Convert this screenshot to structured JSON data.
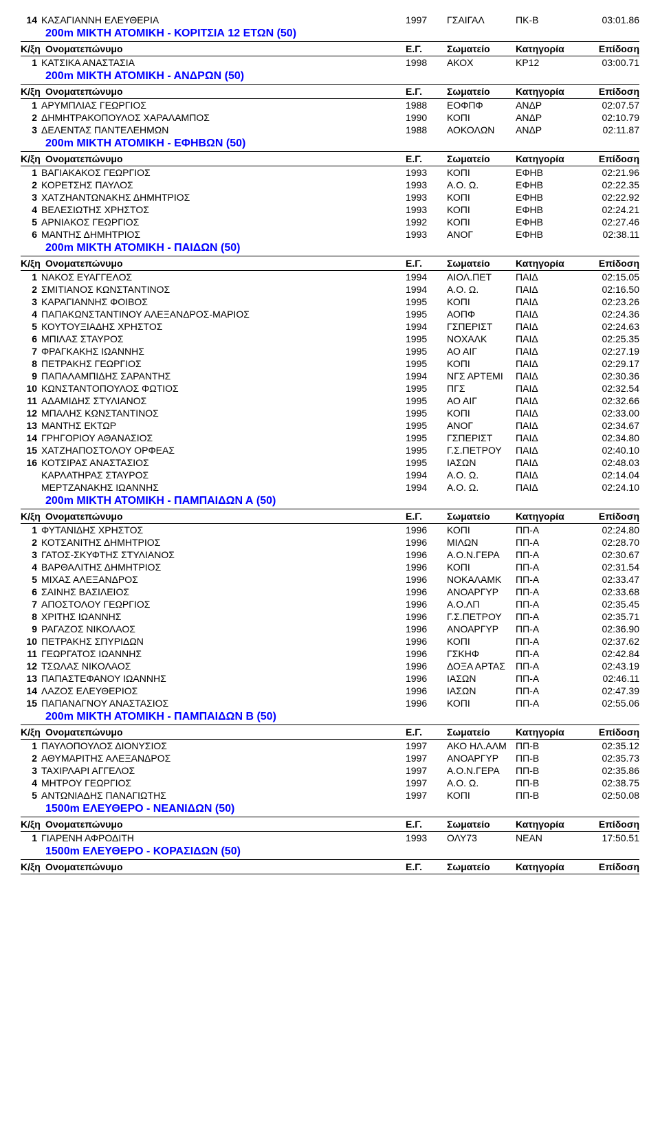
{
  "header_labels": {
    "rank": "Κ/ξη",
    "name": "Ονοματεπώνυμο",
    "year": "Ε.Γ.",
    "club": "Σωματείο",
    "category": "Κατηγορία",
    "performance": "Επίδοση"
  },
  "top_row": {
    "rank": "14",
    "name": "ΚΑΣΑΓΙΑΝΝΗ ΕΛΕΥΘΕΡΙΑ",
    "year": "1997",
    "club": "ΓΣΑΙΓΑΛ",
    "cat": "ΠΚ-Β",
    "perf": "03:01.86"
  },
  "sections": [
    {
      "title": "200m ΜΙΚΤΗ ΑΤΟΜΙΚΗ - ΚΟΡΙΤΣΙΑ 12 ΕΤΩΝ (50)",
      "rows": [
        {
          "rank": "1",
          "name": "ΚΑΤΣΙΚΑ ΑΝΑΣΤΑΣΙΑ",
          "year": "1998",
          "club": "ΑΚΟΧ",
          "cat": "ΚΡ12",
          "perf": "03:00.71"
        }
      ]
    },
    {
      "title": "200m ΜΙΚΤΗ ΑΤΟΜΙΚΗ - ΑΝΔΡΩΝ (50)",
      "rows": [
        {
          "rank": "1",
          "name": "ΑΡΥΜΠΛΙΑΣ ΓΕΩΡΓΙΟΣ",
          "year": "1988",
          "club": "ΕΟΦΠΦ",
          "cat": "ΑΝΔΡ",
          "perf": "02:07.57"
        },
        {
          "rank": "2",
          "name": "ΔΗΜΗΤΡΑΚΟΠΟΥΛΟΣ ΧΑΡΑΛΑΜΠΟΣ",
          "year": "1990",
          "club": "ΚΟΠΙ",
          "cat": "ΑΝΔΡ",
          "perf": "02:10.79"
        },
        {
          "rank": "3",
          "name": "ΔΕΛΕΝΤΑΣ ΠΑΝΤΕΛΕΗΜΩΝ",
          "year": "1988",
          "club": "ΑΟΚΟΛΩΝ",
          "cat": "ΑΝΔΡ",
          "perf": "02:11.87"
        }
      ]
    },
    {
      "title": "200m ΜΙΚΤΗ ΑΤΟΜΙΚΗ - ΕΦΗΒΩΝ (50)",
      "rows": [
        {
          "rank": "1",
          "name": "ΒΑΓΙΑΚΑΚΟΣ ΓΕΩΡΓΙΟΣ",
          "year": "1993",
          "club": "ΚΟΠΙ",
          "cat": "ΕΦΗΒ",
          "perf": "02:21.96"
        },
        {
          "rank": "2",
          "name": "ΚΟΡΕΤΣΗΣ ΠΑΥΛΟΣ",
          "year": "1993",
          "club": "Α.Ο. Ω.",
          "cat": "ΕΦΗΒ",
          "perf": "02:22.35"
        },
        {
          "rank": "3",
          "name": "ΧΑΤΖΗΑΝΤΩΝΑΚΗΣ ΔΗΜΗΤΡΙΟΣ",
          "year": "1993",
          "club": "ΚΟΠΙ",
          "cat": "ΕΦΗΒ",
          "perf": "02:22.92"
        },
        {
          "rank": "4",
          "name": "ΒΕΛΕΣΙΩΤΗΣ ΧΡΗΣΤΟΣ",
          "year": "1993",
          "club": "ΚΟΠΙ",
          "cat": "ΕΦΗΒ",
          "perf": "02:24.21"
        },
        {
          "rank": "5",
          "name": "ΑΡΝΙΑΚΟΣ ΓΕΩΡΓΙΟΣ",
          "year": "1992",
          "club": "ΚΟΠΙ",
          "cat": "ΕΦΗΒ",
          "perf": "02:27.46"
        },
        {
          "rank": "6",
          "name": "ΜΑΝΤΗΣ ΔΗΜΗΤΡΙΟΣ",
          "year": "1993",
          "club": "ΑΝΟΓ",
          "cat": "ΕΦΗΒ",
          "perf": "02:38.11"
        }
      ]
    },
    {
      "title": "200m ΜΙΚΤΗ ΑΤΟΜΙΚΗ - ΠΑΙΔΩΝ (50)",
      "rows": [
        {
          "rank": "1",
          "name": "ΝΑΚΟΣ ΕΥΑΓΓΕΛΟΣ",
          "year": "1994",
          "club": "ΑΙΟΛ.ΠΕΤ",
          "cat": "ΠΑΙΔ",
          "perf": "02:15.05"
        },
        {
          "rank": "2",
          "name": "ΣΜΙΤΙΑΝΟΣ ΚΩΝΣΤΑΝΤΙΝΟΣ",
          "year": "1994",
          "club": "Α.Ο. Ω.",
          "cat": "ΠΑΙΔ",
          "perf": "02:16.50"
        },
        {
          "rank": "3",
          "name": "ΚΑΡΑΓΙΑΝΝΗΣ ΦΟΙΒΟΣ",
          "year": "1995",
          "club": "ΚΟΠΙ",
          "cat": "ΠΑΙΔ",
          "perf": "02:23.26"
        },
        {
          "rank": "4",
          "name": "ΠΑΠΑΚΩΝΣΤΑΝΤΙΝΟΥ ΑΛΕΞΑΝΔΡΟΣ-ΜΑΡΙΟΣ",
          "year": "1995",
          "club": "ΑΟΠΦ",
          "cat": "ΠΑΙΔ",
          "perf": "02:24.36"
        },
        {
          "rank": "5",
          "name": "ΚΟΥΤΟΥΞΙΑΔΗΣ ΧΡΗΣΤΟΣ",
          "year": "1994",
          "club": "ΓΣΠΕΡΙΣΤ",
          "cat": "ΠΑΙΔ",
          "perf": "02:24.63"
        },
        {
          "rank": "6",
          "name": "ΜΠΙΛΑΣ ΣΤΑΥΡΟΣ",
          "year": "1995",
          "club": "ΝΟΧΑΛΚ",
          "cat": "ΠΑΙΔ",
          "perf": "02:25.35"
        },
        {
          "rank": "7",
          "name": "ΦΡΑΓΚΑΚΗΣ ΙΩΑΝΝΗΣ",
          "year": "1995",
          "club": "ΑΟ ΑΙΓ",
          "cat": "ΠΑΙΔ",
          "perf": "02:27.19"
        },
        {
          "rank": "8",
          "name": "ΠΕΤΡΑΚΗΣ ΓΕΩΡΓΙΟΣ",
          "year": "1995",
          "club": "ΚΟΠΙ",
          "cat": "ΠΑΙΔ",
          "perf": "02:29.17"
        },
        {
          "rank": "9",
          "name": "ΠΑΠΑΛΑΜΠΙΔΗΣ ΣΑΡΑΝΤΗΣ",
          "year": "1994",
          "club": "ΝΓΣ ΑΡΤΕΜΙ",
          "cat": "ΠΑΙΔ",
          "perf": "02:30.36"
        },
        {
          "rank": "10",
          "name": "ΚΩΝΣΤΑΝΤΟΠΟΥΛΟΣ ΦΩΤΙΟΣ",
          "year": "1995",
          "club": "ΠΓΣ",
          "cat": "ΠΑΙΔ",
          "perf": "02:32.54"
        },
        {
          "rank": "11",
          "name": "ΑΔΑΜΙΔΗΣ ΣΤΥΛΙΑΝΟΣ",
          "year": "1995",
          "club": "ΑΟ ΑΙΓ",
          "cat": "ΠΑΙΔ",
          "perf": "02:32.66"
        },
        {
          "rank": "12",
          "name": "ΜΠΑΛΗΣ ΚΩΝΣΤΑΝΤΙΝΟΣ",
          "year": "1995",
          "club": "ΚΟΠΙ",
          "cat": "ΠΑΙΔ",
          "perf": "02:33.00"
        },
        {
          "rank": "13",
          "name": "ΜΑΝΤΗΣ ΕΚΤΩΡ",
          "year": "1995",
          "club": "ΑΝΟΓ",
          "cat": "ΠΑΙΔ",
          "perf": "02:34.67"
        },
        {
          "rank": "14",
          "name": "ΓΡΗΓΟΡΙΟΥ ΑΘΑΝΑΣΙΟΣ",
          "year": "1995",
          "club": "ΓΣΠΕΡΙΣΤ",
          "cat": "ΠΑΙΔ",
          "perf": "02:34.80"
        },
        {
          "rank": "15",
          "name": "ΧΑΤΖΗΑΠΟΣΤΟΛΟΥ ΟΡΦΕΑΣ",
          "year": "1995",
          "club": "Γ.Σ.ΠΕΤΡΟΥ",
          "cat": "ΠΑΙΔ",
          "perf": "02:40.10"
        },
        {
          "rank": "16",
          "name": "ΚΟΤΣΙΡΑΣ ΑΝΑΣΤΑΣΙΟΣ",
          "year": "1995",
          "club": "ΙΑΣΩΝ",
          "cat": "ΠΑΙΔ",
          "perf": "02:48.03"
        },
        {
          "rank": "",
          "name": "ΚΑΡΛΑΤΗΡΑΣ ΣΤΑΥΡΟΣ",
          "year": "1994",
          "club": "Α.Ο. Ω.",
          "cat": "ΠΑΙΔ",
          "perf": "02:14.04"
        },
        {
          "rank": "",
          "name": "ΜΕΡΤΖΑΝΑΚΗΣ ΙΩΑΝΝΗΣ",
          "year": "1994",
          "club": "Α.Ο. Ω.",
          "cat": "ΠΑΙΔ",
          "perf": "02:24.10"
        }
      ]
    },
    {
      "title": "200m ΜΙΚΤΗ ΑΤΟΜΙΚΗ - ΠΑΜΠΑΙΔΩΝ Α (50)",
      "rows": [
        {
          "rank": "1",
          "name": "ΦΥΤΑΝΙΔΗΣ ΧΡΗΣΤΟΣ",
          "year": "1996",
          "club": "ΚΟΠΙ",
          "cat": "ΠΠ-Α",
          "perf": "02:24.80"
        },
        {
          "rank": "2",
          "name": "ΚΟΤΣΑΝΙΤΗΣ ΔΗΜΗΤΡΙΟΣ",
          "year": "1996",
          "club": "ΜΙΛΩΝ",
          "cat": "ΠΠ-Α",
          "perf": "02:28.70"
        },
        {
          "rank": "3",
          "name": "ΓΑΤΟΣ-ΣΚΥΦΤΗΣ ΣΤΥΛΙΑΝΟΣ",
          "year": "1996",
          "club": "Α.Ο.Ν.ΓΕΡΑ",
          "cat": "ΠΠ-Α",
          "perf": "02:30.67"
        },
        {
          "rank": "4",
          "name": "ΒΑΡΘΑΛΙΤΗΣ ΔΗΜΗΤΡΙΟΣ",
          "year": "1996",
          "club": "ΚΟΠΙ",
          "cat": "ΠΠ-Α",
          "perf": "02:31.54"
        },
        {
          "rank": "5",
          "name": "ΜΙΧΑΣ ΑΛΕΞΑΝΔΡΟΣ",
          "year": "1996",
          "club": "ΝΟΚΑΛΑΜΚ",
          "cat": "ΠΠ-Α",
          "perf": "02:33.47"
        },
        {
          "rank": "6",
          "name": "ΣΑΙΝΗΣ ΒΑΣΙΛΕΙΟΣ",
          "year": "1996",
          "club": "ΑΝΟΑΡΓΥΡ",
          "cat": "ΠΠ-Α",
          "perf": "02:33.68"
        },
        {
          "rank": "7",
          "name": "ΑΠΟΣΤΟΛΟΥ ΓΕΩΡΓΙΟΣ",
          "year": "1996",
          "club": "Α.Ο.ΛΠ",
          "cat": "ΠΠ-Α",
          "perf": "02:35.45"
        },
        {
          "rank": "8",
          "name": "ΧΡΙΤΗΣ ΙΩΑΝΝΗΣ",
          "year": "1996",
          "club": "Γ.Σ.ΠΕΤΡΟΥ",
          "cat": "ΠΠ-Α",
          "perf": "02:35.71"
        },
        {
          "rank": "9",
          "name": "ΡΑΓΑΖΟΣ ΝΙΚΟΛΑΟΣ",
          "year": "1996",
          "club": "ΑΝΟΑΡΓΥΡ",
          "cat": "ΠΠ-Α",
          "perf": "02:36.90"
        },
        {
          "rank": "10",
          "name": "ΠΕΤΡΑΚΗΣ ΣΠΥΡΙΔΩΝ",
          "year": "1996",
          "club": "ΚΟΠΙ",
          "cat": "ΠΠ-Α",
          "perf": "02:37.62"
        },
        {
          "rank": "11",
          "name": "ΓΕΩΡΓΑΤΟΣ ΙΩΑΝΝΗΣ",
          "year": "1996",
          "club": "ΓΣΚΗΦ",
          "cat": "ΠΠ-Α",
          "perf": "02:42.84"
        },
        {
          "rank": "12",
          "name": "ΤΣΩΛΑΣ ΝΙΚΟΛΑΟΣ",
          "year": "1996",
          "club": "ΔΟΞΑ ΑΡΤΑΣ",
          "cat": "ΠΠ-Α",
          "perf": "02:43.19"
        },
        {
          "rank": "13",
          "name": "ΠΑΠΑΣΤΕΦΑΝΟΥ ΙΩΑΝΝΗΣ",
          "year": "1996",
          "club": "ΙΑΣΩΝ",
          "cat": "ΠΠ-Α",
          "perf": "02:46.11"
        },
        {
          "rank": "14",
          "name": "ΛΑΖΟΣ ΕΛΕΥΘΕΡΙΟΣ",
          "year": "1996",
          "club": "ΙΑΣΩΝ",
          "cat": "ΠΠ-Α",
          "perf": "02:47.39"
        },
        {
          "rank": "15",
          "name": "ΠΑΠΑΝΑΓΝΟΥ ΑΝΑΣΤΑΣΙΟΣ",
          "year": "1996",
          "club": "ΚΟΠΙ",
          "cat": "ΠΠ-Α",
          "perf": "02:55.06"
        }
      ]
    },
    {
      "title": "200m ΜΙΚΤΗ ΑΤΟΜΙΚΗ - ΠΑΜΠΑΙΔΩΝ Β (50)",
      "rows": [
        {
          "rank": "1",
          "name": "ΠΑΥΛΟΠΟΥΛΟΣ ΔΙΟΝΥΣΙΟΣ",
          "year": "1997",
          "club": "ΑΚΟ ΗΛ.ΑΛΜ",
          "cat": "ΠΠ-Β",
          "perf": "02:35.12"
        },
        {
          "rank": "2",
          "name": "ΑΘΥΜΑΡΙΤΗΣ ΑΛΕΞΑΝΔΡΟΣ",
          "year": "1997",
          "club": "ΑΝΟΑΡΓΥΡ",
          "cat": "ΠΠ-Β",
          "perf": "02:35.73"
        },
        {
          "rank": "3",
          "name": "ΤΑΧΙΡΛΑΡΙ ΑΓΓΕΛΟΣ",
          "year": "1997",
          "club": "Α.Ο.Ν.ΓΕΡΑ",
          "cat": "ΠΠ-Β",
          "perf": "02:35.86"
        },
        {
          "rank": "4",
          "name": "ΜΗΤΡΟΥ ΓΕΩΡΓΙΟΣ",
          "year": "1997",
          "club": "Α.Ο. Ω.",
          "cat": "ΠΠ-Β",
          "perf": "02:38.75"
        },
        {
          "rank": "5",
          "name": "ΑΝΤΩΝΙΑΔΗΣ ΠΑΝΑΓΙΩΤΗΣ",
          "year": "1997",
          "club": "ΚΟΠΙ",
          "cat": "ΠΠ-Β",
          "perf": "02:50.08"
        }
      ]
    },
    {
      "title": "1500m ΕΛΕΥΘΕΡΟ - ΝΕΑΝΙΔΩΝ (50)",
      "rows": [
        {
          "rank": "1",
          "name": "ΓΙΑΡΕΝΗ ΑΦΡΟΔΙΤΗ",
          "year": "1993",
          "club": "ΟΛΥ73",
          "cat": "ΝΕΑΝ",
          "perf": "17:50.51"
        }
      ]
    },
    {
      "title": "1500m ΕΛΕΥΘΕΡΟ - ΚΟΡΑΣΙΔΩΝ (50)",
      "rows": []
    }
  ]
}
